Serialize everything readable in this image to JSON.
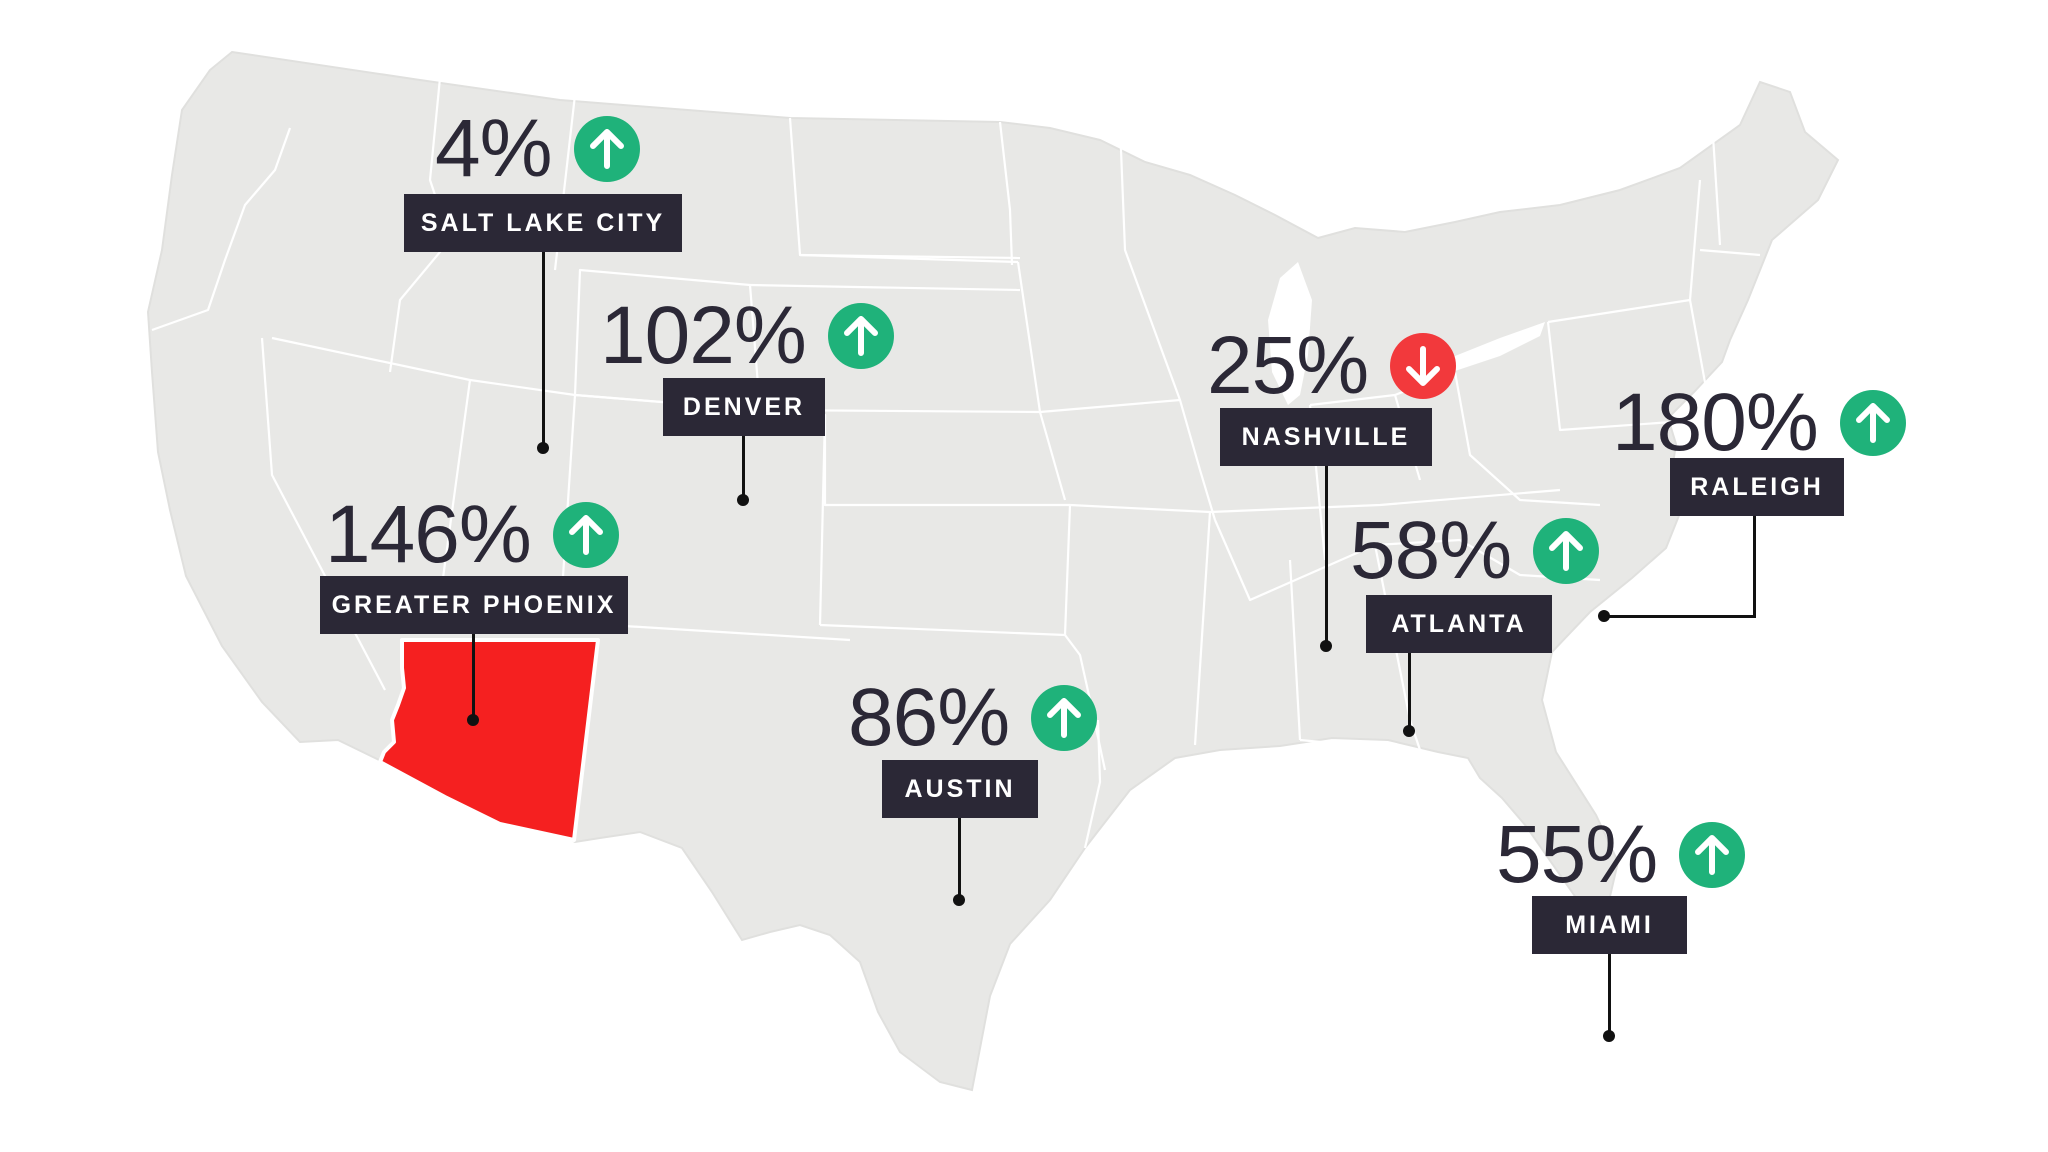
{
  "map": {
    "land_color": "#e8e8e6",
    "border_color": "#ffffff",
    "highlight_region": "Arizona",
    "highlight_color": "#f52020"
  },
  "colors": {
    "up": "#1fb27a",
    "down": "#f2393c",
    "label_bg": "#2b2836",
    "text": "#2b2836"
  },
  "markers": {
    "salt_lake_city": {
      "city": "SALT LAKE CITY",
      "percent": "4%",
      "trend": "up",
      "icon": "arrow-up-icon"
    },
    "denver": {
      "city": "DENVER",
      "percent": "102%",
      "trend": "up",
      "icon": "arrow-up-icon"
    },
    "greater_phoenix": {
      "city": "GREATER PHOENIX",
      "percent": "146%",
      "trend": "up",
      "icon": "arrow-up-icon"
    },
    "austin": {
      "city": "AUSTIN",
      "percent": "86%",
      "trend": "up",
      "icon": "arrow-up-icon"
    },
    "nashville": {
      "city": "NASHVILLE",
      "percent": "25%",
      "trend": "down",
      "icon": "arrow-down-icon"
    },
    "atlanta": {
      "city": "ATLANTA",
      "percent": "58%",
      "trend": "up",
      "icon": "arrow-up-icon"
    },
    "raleigh": {
      "city": "RALEIGH",
      "percent": "180%",
      "trend": "up",
      "icon": "arrow-up-icon"
    },
    "miami": {
      "city": "MIAMI",
      "percent": "55%",
      "trend": "up",
      "icon": "arrow-up-icon"
    }
  }
}
